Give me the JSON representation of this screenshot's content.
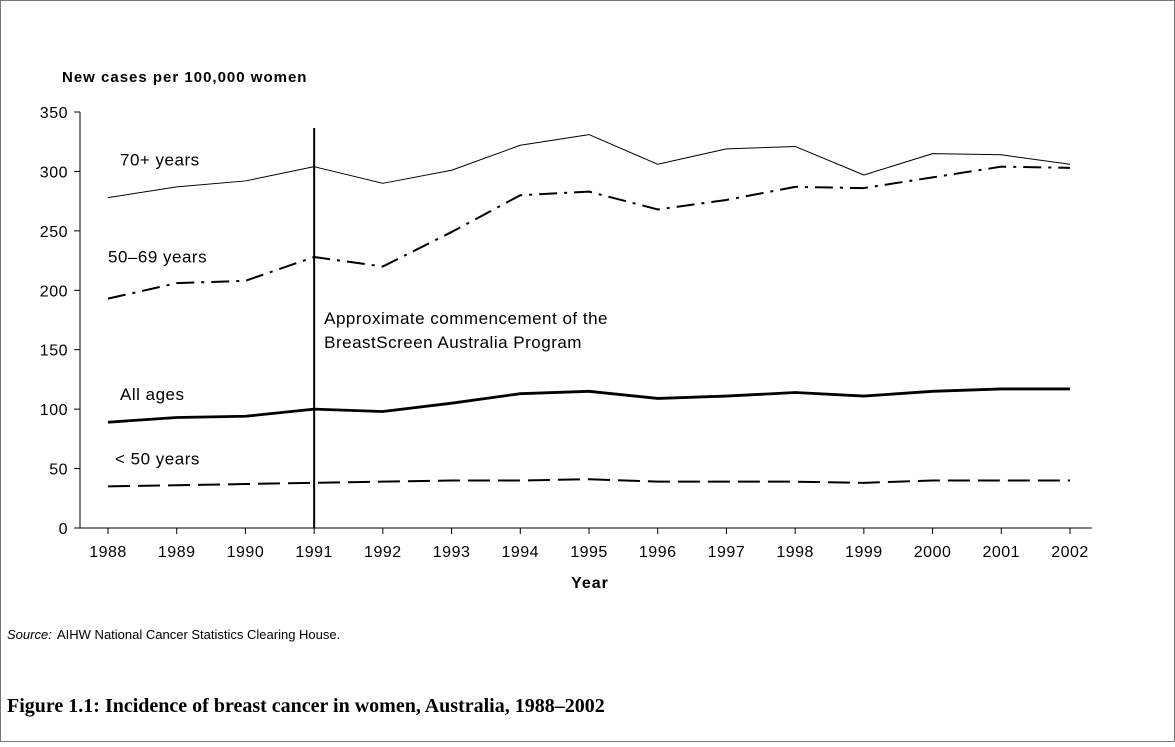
{
  "chart_data": {
    "type": "line",
    "y_axis_label": "New cases per 100,000 women",
    "x_axis_label": "Year",
    "categories": [
      "1988",
      "1989",
      "1990",
      "1991",
      "1992",
      "1993",
      "1994",
      "1995",
      "1996",
      "1997",
      "1998",
      "1999",
      "2000",
      "2001",
      "2002"
    ],
    "series": [
      {
        "name": "70+ years",
        "color": "#000000",
        "line_style": "thin",
        "values": [
          278,
          287,
          292,
          304,
          290,
          301,
          322,
          331,
          306,
          319,
          321,
          297,
          315,
          314,
          306
        ]
      },
      {
        "name": "50–69 years",
        "color": "#000000",
        "line_style": "dash-dot",
        "values": [
          193,
          206,
          208,
          228,
          220,
          249,
          280,
          283,
          268,
          276,
          287,
          286,
          295,
          304,
          303
        ]
      },
      {
        "name": "All ages",
        "color": "#000000",
        "line_style": "thick",
        "values": [
          89,
          93,
          94,
          100,
          98,
          105,
          113,
          115,
          109,
          111,
          114,
          111,
          115,
          117,
          117
        ]
      },
      {
        "name": "< 50 years",
        "color": "#000000",
        "line_style": "dashed",
        "values": [
          35,
          36,
          37,
          38,
          39,
          40,
          40,
          41,
          39,
          39,
          39,
          38,
          40,
          40,
          40
        ]
      }
    ],
    "ylim": [
      0,
      350
    ],
    "yticks": [
      0,
      50,
      100,
      150,
      200,
      250,
      300,
      350
    ],
    "marker_category": "1991",
    "annotation": [
      "Approximate commencement of the",
      "BreastScreen Australia Program"
    ],
    "source_label": "Source:",
    "source_text": "AIHW National Cancer Statistics Clearing House.",
    "caption": "Figure 1.1: Incidence of breast cancer in women, Australia, 1988–2002"
  }
}
